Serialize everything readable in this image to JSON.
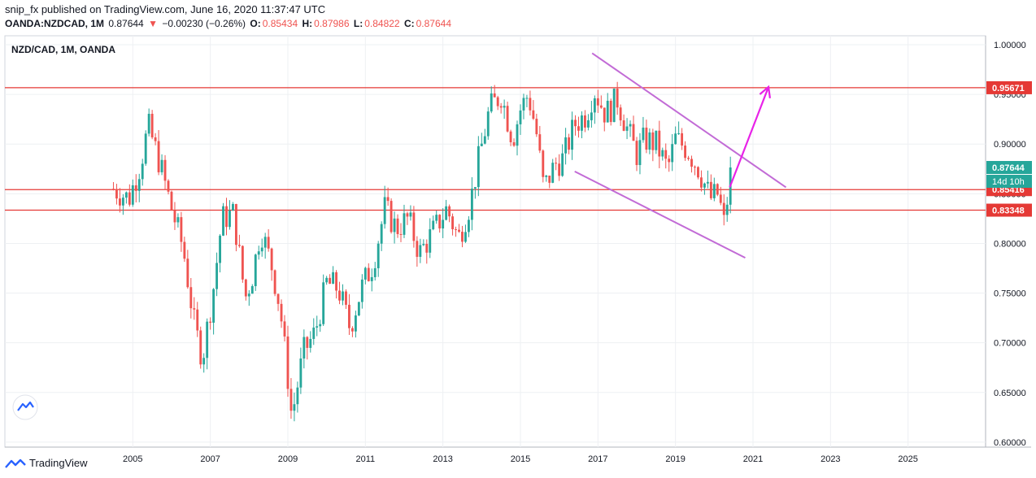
{
  "header": {
    "author": "snip_fx",
    "published_text": "published on TradingView.com, June 16, 2020 11:37:47 UTC",
    "symbol": "OANDA:NZDCAD, 1M",
    "last": "0.87644",
    "change_arrow": "▼",
    "change": "−0.00230 (−0.26%)",
    "o_label": "O:",
    "o_value": "0.85434",
    "h_label": "H:",
    "h_value": "0.87986",
    "l_label": "L:",
    "l_value": "0.84822",
    "c_label": "C:",
    "c_value": "0.87644"
  },
  "footer": {
    "brand": "TradingView"
  },
  "colors": {
    "up": "#26a69a",
    "down": "#ef5350",
    "level": "#e53935",
    "channel": "#c26bd6",
    "arrow": "#e822e8",
    "last": "#26a69a"
  },
  "chart_data": {
    "type": "candlestick",
    "title": "NZD/CAD, 1M, OANDA",
    "x_ticks": [
      "2005",
      "2007",
      "2009",
      "2011",
      "2013",
      "2015",
      "2017",
      "2019",
      "2021",
      "2023",
      "2025"
    ],
    "y_ticks": [
      "0.60000",
      "0.65000",
      "0.70000",
      "0.75000",
      "0.80000",
      "0.85000",
      "0.90000",
      "0.95000",
      "1.00000"
    ],
    "ylim": [
      0.595,
      1.009
    ],
    "xlim": [
      2001.7,
      2027.0
    ],
    "grid": true,
    "keyframes": [
      [
        2004.5,
        0.855
      ],
      [
        2004.9,
        0.845
      ],
      [
        2005.2,
        0.88
      ],
      [
        2005.4,
        0.918
      ],
      [
        2005.7,
        0.88
      ],
      [
        2006.0,
        0.835
      ],
      [
        2006.3,
        0.795
      ],
      [
        2006.6,
        0.715
      ],
      [
        2006.8,
        0.685
      ],
      [
        2007.1,
        0.76
      ],
      [
        2007.3,
        0.825
      ],
      [
        2007.6,
        0.83
      ],
      [
        2007.9,
        0.745
      ],
      [
        2008.1,
        0.77
      ],
      [
        2008.3,
        0.815
      ],
      [
        2008.6,
        0.775
      ],
      [
        2008.8,
        0.735
      ],
      [
        2009.0,
        0.665
      ],
      [
        2009.1,
        0.625
      ],
      [
        2009.4,
        0.69
      ],
      [
        2009.7,
        0.71
      ],
      [
        2010.0,
        0.76
      ],
      [
        2010.3,
        0.755
      ],
      [
        2010.6,
        0.715
      ],
      [
        2010.9,
        0.755
      ],
      [
        2011.2,
        0.78
      ],
      [
        2011.5,
        0.835
      ],
      [
        2011.8,
        0.815
      ],
      [
        2012.1,
        0.825
      ],
      [
        2012.4,
        0.79
      ],
      [
        2012.8,
        0.815
      ],
      [
        2013.1,
        0.835
      ],
      [
        2013.4,
        0.805
      ],
      [
        2013.7,
        0.84
      ],
      [
        2013.9,
        0.88
      ],
      [
        2014.2,
        0.935
      ],
      [
        2014.5,
        0.95
      ],
      [
        2014.8,
        0.905
      ],
      [
        2015.0,
        0.935
      ],
      [
        2015.2,
        0.95
      ],
      [
        2015.4,
        0.915
      ],
      [
        2015.6,
        0.855
      ],
      [
        2015.9,
        0.88
      ],
      [
        2016.1,
        0.885
      ],
      [
        2016.4,
        0.92
      ],
      [
        2016.7,
        0.93
      ],
      [
        2016.9,
        0.955
      ],
      [
        2017.2,
        0.93
      ],
      [
        2017.5,
        0.945
      ],
      [
        2017.8,
        0.91
      ],
      [
        2018.0,
        0.89
      ],
      [
        2018.2,
        0.905
      ],
      [
        2018.5,
        0.9
      ],
      [
        2018.8,
        0.875
      ],
      [
        2019.0,
        0.905
      ],
      [
        2019.3,
        0.895
      ],
      [
        2019.6,
        0.875
      ],
      [
        2019.9,
        0.845
      ],
      [
        2020.1,
        0.85
      ],
      [
        2020.25,
        0.82
      ],
      [
        2020.45,
        0.876
      ]
    ],
    "horizontal_levels": [
      {
        "value": 0.95671,
        "label": "0.95671"
      },
      {
        "value": 0.85416,
        "label": "0.85416"
      },
      {
        "value": 0.83348,
        "label": "0.83348"
      }
    ],
    "last_price": {
      "value": 0.87644,
      "label": "0.87644",
      "countdown": "14d 10h"
    },
    "channel_upper": [
      [
        2016.85,
        0.9915
      ],
      [
        2021.85,
        0.8565
      ]
    ],
    "channel_lower": [
      [
        2016.4,
        0.8725
      ],
      [
        2020.8,
        0.7855
      ]
    ],
    "projection_arrow": [
      [
        2020.4,
        0.8565
      ],
      [
        2021.4,
        0.9575
      ]
    ]
  }
}
